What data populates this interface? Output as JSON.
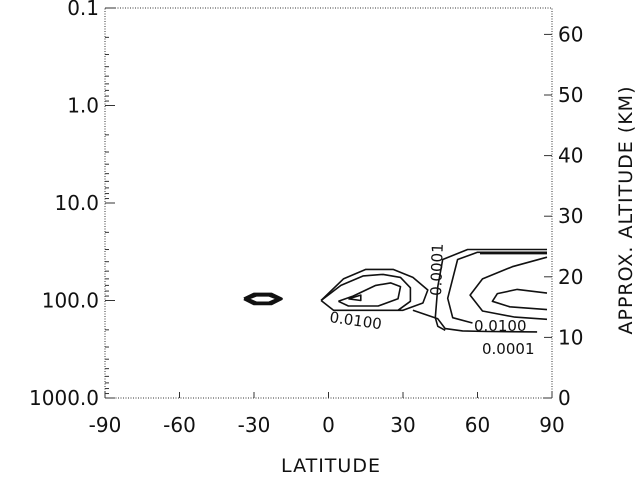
{
  "chart_data": {
    "type": "contour",
    "xlabel": "LATITUDE",
    "ylabel_right": "APPROX. ALTITUDE (KM)",
    "x_ticks": [
      "-90",
      "-60",
      "-30",
      "0",
      "30",
      "60",
      "90"
    ],
    "x_tick_values": [
      -90,
      -60,
      -30,
      0,
      30,
      60,
      90
    ],
    "xlim": [
      -90,
      90
    ],
    "y_left_ticks": [
      "0.1",
      "1.0",
      "10.0",
      "100.0",
      "1000.0"
    ],
    "y_left_tick_values": [
      0.1,
      1,
      10,
      100,
      1000
    ],
    "y_left_scale": "log",
    "ylim_left": [
      0.1,
      1000
    ],
    "y_right_ticks": [
      "0",
      "10",
      "20",
      "30",
      "40",
      "50",
      "60"
    ],
    "y_right_tick_values": [
      0,
      10,
      20,
      30,
      40,
      50,
      60
    ],
    "contour_labels": [
      "0.0001",
      "0.0100",
      "0.0100",
      "0.0001"
    ],
    "contours": [
      {
        "level": "0.0001",
        "points": [
          [
            -34,
            96
          ],
          [
            -30,
            86
          ],
          [
            -23,
            86
          ],
          [
            -19,
            96
          ],
          [
            -23,
            108
          ],
          [
            -30,
            108
          ],
          [
            -34,
            96
          ]
        ],
        "bold": true
      },
      {
        "level": "0.0100",
        "points": [
          [
            -33,
            96
          ],
          [
            -29,
            88
          ],
          [
            -24,
            88
          ],
          [
            -20,
            96
          ],
          [
            -24,
            106
          ],
          [
            -29,
            106
          ],
          [
            -33,
            96
          ]
        ],
        "bold": true
      },
      {
        "level": "0.0001",
        "points": [
          [
            -3,
            100
          ],
          [
            6,
            60
          ],
          [
            15,
            48
          ],
          [
            26,
            48
          ],
          [
            34,
            58
          ],
          [
            40,
            78
          ],
          [
            38,
            106
          ],
          [
            30,
            126
          ],
          [
            2,
            126
          ],
          [
            -3,
            100
          ]
        ]
      },
      {
        "level": "0.0001",
        "points": [
          [
            34,
            126
          ],
          [
            44,
            154
          ],
          [
            47,
            194
          ],
          [
            54,
            205
          ],
          [
            64,
            208
          ],
          [
            84,
            210
          ]
        ]
      },
      {
        "level": "0.0100",
        "points": [
          [
            -3,
            100
          ],
          [
            5,
            70
          ],
          [
            14,
            56
          ],
          [
            22,
            54
          ],
          [
            29,
            58
          ],
          [
            33,
            74
          ],
          [
            33,
            102
          ],
          [
            28,
            126
          ]
        ]
      },
      {
        "level": "0.0100",
        "points": [
          [
            4,
            102
          ],
          [
            10,
            90
          ],
          [
            19,
            70
          ],
          [
            25,
            66
          ],
          [
            29,
            72
          ],
          [
            28,
            96
          ],
          [
            20,
            114
          ],
          [
            8,
            114
          ],
          [
            4,
            102
          ]
        ]
      },
      {
        "level": "0.0100",
        "points": [
          [
            8,
            96
          ],
          [
            13,
            88
          ],
          [
            13,
            100
          ],
          [
            8,
            96
          ]
        ]
      },
      {
        "level": "0.0001",
        "points": [
          [
            47,
            202
          ],
          [
            44,
            184
          ],
          [
            43,
            150
          ],
          [
            44,
            72
          ],
          [
            46,
            38
          ],
          [
            56,
            30
          ],
          [
            88,
            30
          ]
        ]
      },
      {
        "level": "0.0100",
        "points": [
          [
            58,
            170
          ],
          [
            50,
            150
          ],
          [
            48,
            95
          ],
          [
            52,
            38
          ],
          [
            60,
            32
          ],
          [
            88,
            32
          ]
        ]
      },
      {
        "level": "0.0001",
        "points": [
          [
            61,
            33
          ],
          [
            88,
            33
          ]
        ]
      },
      {
        "level": "0.0100",
        "points": [
          [
            88,
            36
          ],
          [
            74,
            45
          ],
          [
            62,
            60
          ],
          [
            57,
            88
          ],
          [
            62,
            128
          ],
          [
            75,
            148
          ],
          [
            88,
            156
          ]
        ]
      },
      {
        "level": "0.0100",
        "points": [
          [
            88,
            84
          ],
          [
            76,
            77
          ],
          [
            68,
            85
          ],
          [
            66,
            102
          ],
          [
            73,
            116
          ],
          [
            88,
            124
          ]
        ]
      }
    ]
  }
}
